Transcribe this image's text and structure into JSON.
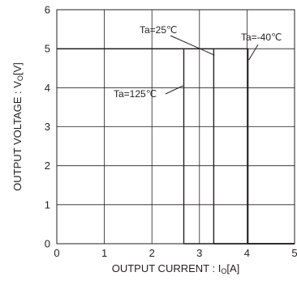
{
  "chart_data": {
    "type": "line",
    "title": "",
    "xlabel": {
      "main": "OUTPUT CURRENT : I",
      "sub": "O",
      "tail": "[A]"
    },
    "ylabel": {
      "main": "OUTPUT VOLTAGE : V",
      "sub": "O",
      "tail": "[V]"
    },
    "xlim": [
      0,
      5
    ],
    "ylim": [
      0,
      6
    ],
    "x_ticks": [
      0,
      1,
      2,
      3,
      4,
      5
    ],
    "y_ticks": [
      0,
      1,
      2,
      3,
      4,
      5,
      6
    ],
    "grid": true,
    "series": [
      {
        "name": "Ta=125℃",
        "x": [
          0,
          2.67,
          2.67,
          5
        ],
        "y": [
          5,
          5,
          0,
          0
        ]
      },
      {
        "name": "Ta=25℃",
        "x": [
          0,
          3.3,
          3.3,
          5
        ],
        "y": [
          5,
          5,
          0,
          0
        ]
      },
      {
        "name": "Ta=-40℃",
        "x": [
          0,
          4.02,
          4.02,
          5
        ],
        "y": [
          5,
          5,
          0,
          0
        ]
      }
    ],
    "annotations": [
      {
        "text": "Ta=25℃",
        "series": "Ta=25℃"
      },
      {
        "text": "Ta=-40℃",
        "series": "Ta=-40℃"
      },
      {
        "text": "Ta=125℃",
        "series": "Ta=125℃"
      }
    ]
  },
  "colors": {
    "line": "#231f20",
    "grid": "#231f20",
    "axis": "#231f20",
    "background": "#ffffff"
  }
}
